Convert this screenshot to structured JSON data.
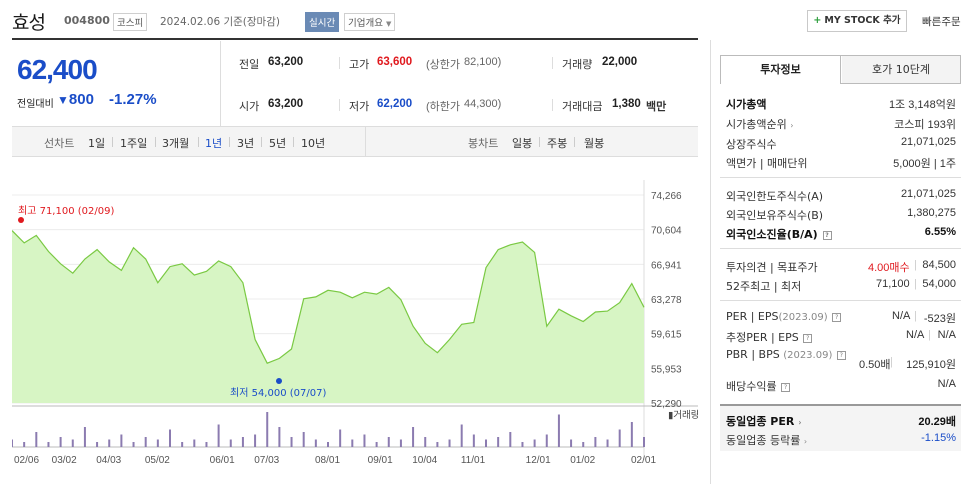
{
  "header": {
    "stock_name": "효성",
    "stock_code": "004800",
    "market": "코스피",
    "date": "2024.02.06",
    "basis": "기준(장마감)",
    "realtime_badge": "실시간",
    "company_info": "기업개요",
    "mystock_button": "MY STOCK 추가",
    "quick_order": "빠른주문"
  },
  "price": {
    "current": "62,400",
    "diff_label": "전일대비",
    "diff_value": "800",
    "diff_rate": "-1.27%"
  },
  "quote": {
    "prev_label": "전일",
    "prev": "63,200",
    "high_label": "고가",
    "high": "63,600",
    "upper_label": "(상한가",
    "upper": "82,100)",
    "volume_label": "거래량",
    "volume": "22,000",
    "open_label": "시가",
    "open": "63,200",
    "low_label": "저가",
    "low": "62,200",
    "lower_label": "(하한가",
    "lower": "44,300)",
    "amount_label": "거래대금",
    "amount": "1,380",
    "amount_unit": "백만"
  },
  "tabs": {
    "line_label": "선차트",
    "periods": [
      "1일",
      "1주일",
      "3개월",
      "1년",
      "3년",
      "5년",
      "10년"
    ],
    "active": "1년",
    "candle_label": "봉차트",
    "candles": [
      "일봉",
      "주봉",
      "월봉"
    ]
  },
  "chart_data": {
    "type": "area",
    "x": [
      "02/06",
      "02/13",
      "02/20",
      "02/27",
      "03/06",
      "03/13",
      "03/20",
      "03/27",
      "04/03",
      "04/10",
      "04/17",
      "04/24",
      "05/02",
      "05/09",
      "05/16",
      "05/23",
      "05/30",
      "06/06",
      "06/13",
      "06/20",
      "06/27",
      "07/03",
      "07/10",
      "07/17",
      "07/24",
      "07/31",
      "08/07",
      "08/14",
      "08/21",
      "08/28",
      "09/04",
      "09/11",
      "09/18",
      "09/25",
      "10/04",
      "10/11",
      "10/18",
      "10/25",
      "11/01",
      "11/08",
      "11/15",
      "11/22",
      "11/29",
      "12/06",
      "12/13",
      "12/20",
      "12/27",
      "01/02",
      "01/09",
      "01/16",
      "01/23",
      "01/30",
      "02/06"
    ],
    "values": [
      70500,
      69200,
      70000,
      68300,
      67000,
      66000,
      67500,
      68500,
      67200,
      66300,
      68700,
      67500,
      65000,
      66700,
      67000,
      65800,
      66200,
      67300,
      66700,
      65000,
      59000,
      56500,
      57000,
      58000,
      63300,
      63500,
      64200,
      64000,
      63400,
      64000,
      63800,
      64500,
      63200,
      60400,
      58600,
      57600,
      59000,
      60600,
      60800,
      66600,
      68500,
      69000,
      69300,
      68200,
      60400,
      62200,
      61500,
      60900,
      61900,
      62000,
      62900,
      64900,
      62400
    ],
    "ylim": [
      52290,
      74266
    ],
    "y_ticks": [
      "74,266",
      "70,604",
      "66,941",
      "63,278",
      "59,615",
      "55,953",
      "52,290"
    ],
    "x_ticks": [
      "02/06",
      "03/02",
      "04/03",
      "05/02",
      "06/01",
      "07/03",
      "08/01",
      "09/01",
      "10/04",
      "11/01",
      "12/01",
      "01/02",
      "02/01"
    ],
    "max_label": "최고 71,100 (02/09)",
    "min_label": "최저 54,000 (07/07)",
    "volume_label": "거래량",
    "volume": [
      3,
      2,
      6,
      2,
      4,
      3,
      8,
      2,
      3,
      5,
      2,
      4,
      3,
      7,
      2,
      3,
      2,
      9,
      3,
      4,
      5,
      14,
      8,
      4,
      6,
      3,
      2,
      7,
      3,
      5,
      2,
      4,
      3,
      8,
      4,
      2,
      3,
      9,
      5,
      3,
      4,
      6,
      2,
      3,
      5,
      13,
      3,
      2,
      4,
      3,
      7,
      10,
      4
    ],
    "colors": {
      "line": "#7ac943",
      "fill": "#d7f5c4",
      "high": "#e0191e",
      "low": "#1a4dc8"
    }
  },
  "invest_tabs": [
    "투자정보",
    "호가 10단계"
  ],
  "invest": {
    "market_cap_label": "시가총액",
    "market_cap": "1조 3,148억원",
    "cap_rank_label": "시가총액순위",
    "cap_rank": "코스피 193위",
    "shares_label": "상장주식수",
    "shares": "21,071,025",
    "face_label": "액면가 | 매매단위",
    "face": "5,000원 | 1주",
    "foreign_limit_label": "외국인한도주식수(A)",
    "foreign_limit": "21,071,025",
    "foreign_hold_label": "외국인보유주식수(B)",
    "foreign_hold": "1,380,275",
    "foreign_rate_label": "외국인소진율(B/A)",
    "foreign_rate": "6.55%",
    "opinion_label": "투자의견 | 목표주가",
    "opinion": "4.00매수",
    "target": "84,500",
    "w52_label": "52주최고 | 최저",
    "w52_high": "71,100",
    "w52_low": "54,000",
    "per_label": "PER | EPS",
    "per_year": "(2023.09)",
    "per": "N/A",
    "eps": "-523원",
    "est_label": "추정PER | EPS",
    "est_per": "N/A",
    "est_eps": "N/A",
    "pbr_label": "PBR | BPS",
    "pbr_year": "(2023.09)",
    "pbr": "0.50배",
    "bps": "125,910원",
    "div_label": "배당수익률",
    "div": "N/A",
    "peer_per_label": "동일업종 PER",
    "peer_per": "20.29배",
    "peer_rate_label": "동일업종 등락률",
    "peer_rate": "-1.15%"
  }
}
